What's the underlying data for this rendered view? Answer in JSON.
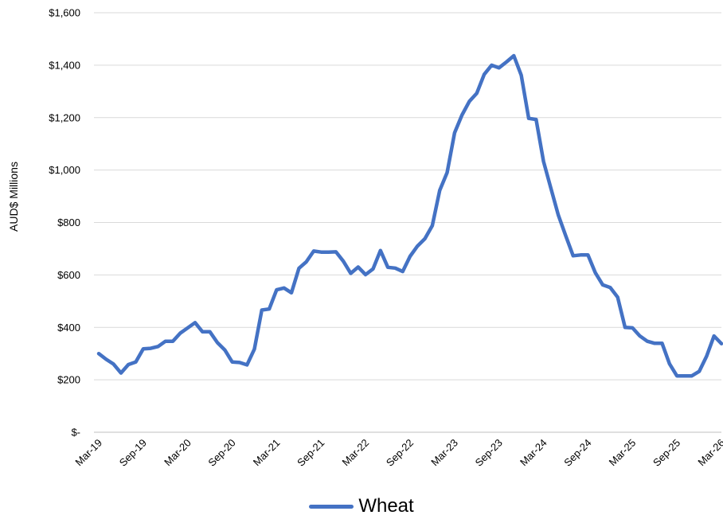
{
  "chart_data": {
    "type": "line",
    "title": "",
    "xlabel": "",
    "ylabel": "AUD$ Millions",
    "ylim": [
      0,
      1600
    ],
    "y_ticks": [
      0,
      200,
      400,
      600,
      800,
      1000,
      1200,
      1400,
      1600
    ],
    "y_tick_labels": [
      "$-",
      "$200",
      "$400",
      "$600",
      "$800",
      "$1,000",
      "$1,200",
      "$1,400",
      "$1,600"
    ],
    "x_tick_labels": [
      "Mar-19",
      "Sep-19",
      "Mar-20",
      "Sep-20",
      "Mar-21",
      "Sep-21",
      "Mar-22",
      "Sep-22",
      "Mar-23",
      "Sep-23",
      "Mar-24",
      "Sep-24",
      "Mar-25",
      "Sep-25",
      "Mar-26"
    ],
    "grid": true,
    "legend_position": "bottom-center",
    "x": [
      "Mar-19",
      "Apr-19",
      "May-19",
      "Jun-19",
      "Jul-19",
      "Aug-19",
      "Sep-19",
      "Oct-19",
      "Nov-19",
      "Dec-19",
      "Jan-20",
      "Feb-20",
      "Mar-20",
      "Apr-20",
      "May-20",
      "Jun-20",
      "Jul-20",
      "Aug-20",
      "Sep-20",
      "Oct-20",
      "Nov-20",
      "Dec-20",
      "Jan-21",
      "Feb-21",
      "Mar-21",
      "Apr-21",
      "May-21",
      "Jun-21",
      "Jul-21",
      "Aug-21",
      "Sep-21",
      "Oct-21",
      "Nov-21",
      "Dec-21",
      "Jan-22",
      "Feb-22",
      "Mar-22",
      "Apr-22",
      "May-22",
      "Jun-22",
      "Jul-22",
      "Aug-22",
      "Sep-22",
      "Oct-22",
      "Nov-22",
      "Dec-22",
      "Jan-23",
      "Feb-23",
      "Mar-23",
      "Apr-23",
      "May-23",
      "Jun-23",
      "Jul-23",
      "Aug-23",
      "Sep-23",
      "Oct-23",
      "Nov-23",
      "Dec-23",
      "Jan-24",
      "Feb-24",
      "Mar-24",
      "Apr-24",
      "May-24",
      "Jun-24",
      "Jul-24",
      "Aug-24",
      "Sep-24",
      "Oct-24",
      "Nov-24",
      "Dec-24",
      "Jan-25",
      "Feb-25",
      "Mar-25",
      "Apr-25",
      "May-25",
      "Jun-25",
      "Jul-25",
      "Aug-25",
      "Sep-25",
      "Oct-25",
      "Nov-25",
      "Dec-25",
      "Jan-26",
      "Feb-26",
      "Mar-26"
    ],
    "series": [
      {
        "name": "Wheat",
        "color": "#4472c4",
        "values": [
          300,
          278,
          260,
          226,
          258,
          268,
          318,
          320,
          327,
          347,
          347,
          378,
          398,
          418,
          383,
          383,
          342,
          314,
          268,
          266,
          257,
          317,
          466,
          470,
          543,
          550,
          532,
          625,
          650,
          691,
          687,
          687,
          688,
          652,
          606,
          630,
          601,
          623,
          693,
          629,
          626,
          613,
          671,
          710,
          738,
          788,
          922,
          990,
          1142,
          1210,
          1262,
          1293,
          1365,
          1400,
          1390,
          1412,
          1436,
          1362,
          1197,
          1193,
          1033,
          930,
          828,
          749,
          673,
          676,
          676,
          608,
          562,
          552,
          515,
          400,
          398,
          367,
          347,
          339,
          339,
          261,
          215,
          215,
          215,
          232,
          290,
          367,
          338
        ]
      }
    ]
  }
}
